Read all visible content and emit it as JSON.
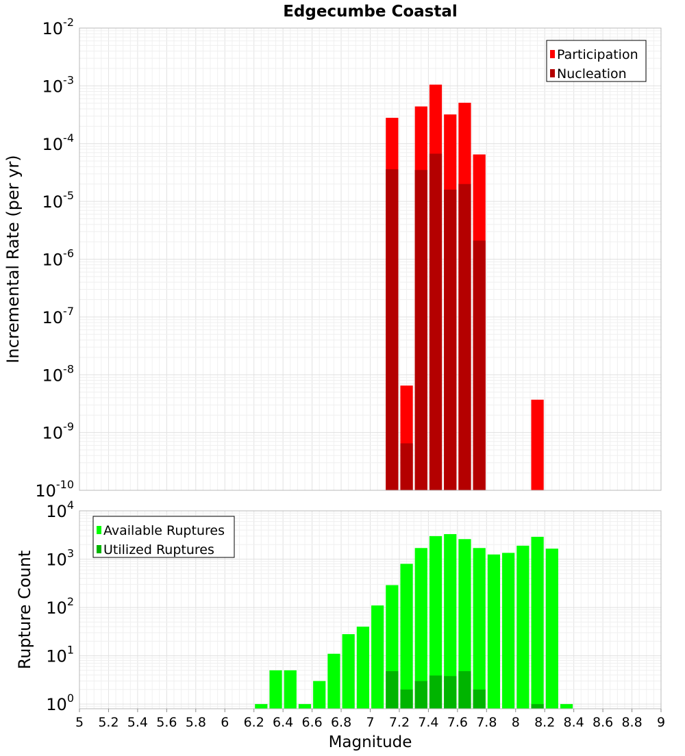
{
  "chart_data": [
    {
      "type": "bar",
      "title": "Edgecumbe Coastal",
      "ylabel": "Incremental Rate (per yr)",
      "xlabel": "",
      "yscale": "log",
      "ylim": [
        1e-10,
        0.01
      ],
      "xlim": [
        5,
        9
      ],
      "grid": true,
      "legend_position": "top-right",
      "y_tick_exponents": [
        -10,
        -9,
        -8,
        -7,
        -6,
        -5,
        -4,
        -3,
        -2
      ],
      "x": [
        7.15,
        7.25,
        7.35,
        7.45,
        7.55,
        7.65,
        7.75,
        8.15
      ],
      "bar_width": 0.1,
      "series": [
        {
          "name": "Participation",
          "color": "#ff0000",
          "values": [
            0.00028,
            6.5e-09,
            0.00044,
            0.00105,
            0.00032,
            0.00051,
            6.5e-05,
            3.7e-09
          ]
        },
        {
          "name": "Nucleation",
          "color": "#b40000",
          "values": [
            3.6e-05,
            6.5e-10,
            3.5e-05,
            6.7e-05,
            1.6e-05,
            2e-05,
            2.1e-06,
            null
          ]
        }
      ]
    },
    {
      "type": "bar",
      "title": "",
      "ylabel": "Rupture Count",
      "xlabel": "Magnitude",
      "yscale": "log",
      "ylim": [
        0.8,
        10000
      ],
      "xlim": [
        5,
        9
      ],
      "grid": true,
      "legend_position": "top-left",
      "y_tick_exponents": [
        0,
        1,
        2,
        3,
        4
      ],
      "x_ticks": [
        "5",
        "5.2",
        "5.4",
        "5.6",
        "5.8",
        "6",
        "6.2",
        "6.4",
        "6.6",
        "6.8",
        "7",
        "7.2",
        "7.4",
        "7.6",
        "7.8",
        "8",
        "8.2",
        "8.4",
        "8.6",
        "8.8",
        "9"
      ],
      "x": [
        6.25,
        6.35,
        6.45,
        6.55,
        6.65,
        6.75,
        6.85,
        6.95,
        7.05,
        7.15,
        7.25,
        7.35,
        7.45,
        7.55,
        7.65,
        7.75,
        7.85,
        7.95,
        8.05,
        8.15,
        8.25,
        8.35
      ],
      "bar_width": 0.1,
      "series": [
        {
          "name": "Available Ruptures",
          "color": "#00ff00",
          "values": [
            1,
            5,
            5,
            1,
            3,
            11,
            28,
            40,
            110,
            290,
            800,
            1700,
            3000,
            3300,
            2600,
            1700,
            1250,
            1350,
            1900,
            2900,
            1650,
            1
          ]
        },
        {
          "name": "Utilized Ruptures",
          "color": "#00b400",
          "values": [
            null,
            null,
            null,
            null,
            null,
            null,
            null,
            null,
            null,
            4.8,
            2,
            3,
            3.9,
            3.8,
            4.8,
            2,
            null,
            null,
            null,
            1,
            null,
            null
          ]
        }
      ]
    }
  ]
}
